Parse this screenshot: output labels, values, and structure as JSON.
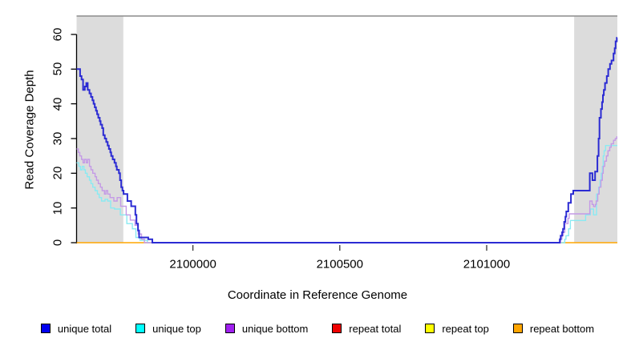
{
  "chart_data": {
    "type": "line",
    "subtype": "step-coverage",
    "title": "",
    "xlabel": "Coordinate in Reference Genome",
    "ylabel": "Read Coverage Depth",
    "xlim": [
      2099604,
      2101445
    ],
    "ylim": [
      0,
      65.3
    ],
    "x_ticks": [
      2100000,
      2100500,
      2101000
    ],
    "x_tick_labels": [
      "2100000",
      "2100500",
      "2101000"
    ],
    "y_ticks": [
      0,
      10,
      20,
      30,
      40,
      50,
      60
    ],
    "y_tick_labels": [
      "0",
      "10",
      "20",
      "30",
      "40",
      "50",
      "60"
    ],
    "grid": false,
    "legend_position": "bottom",
    "colors": {
      "background": "#ffffff",
      "shade": "#dcdcdc",
      "top_frame": "#8c8c8c",
      "axis": "#000000",
      "text": "#000000"
    },
    "shaded_regions": [
      [
        2099604,
        2099763
      ],
      [
        2101298,
        2101445
      ]
    ],
    "series": [
      {
        "name": "unique total",
        "legend_color": "#0000f0",
        "line_color": "#2b2bd3",
        "line_width": 2,
        "points": [
          [
            2099604,
            50
          ],
          [
            2099616,
            48
          ],
          [
            2099621,
            47
          ],
          [
            2099626,
            44
          ],
          [
            2099632,
            45
          ],
          [
            2099637,
            46
          ],
          [
            2099642,
            44
          ],
          [
            2099648,
            43
          ],
          [
            2099653,
            42
          ],
          [
            2099658,
            41
          ],
          [
            2099662,
            40
          ],
          [
            2099666,
            39
          ],
          [
            2099670,
            38
          ],
          [
            2099674,
            37
          ],
          [
            2099678,
            36
          ],
          [
            2099683,
            35
          ],
          [
            2099686,
            34
          ],
          [
            2099691,
            33
          ],
          [
            2099695,
            31
          ],
          [
            2099700,
            30
          ],
          [
            2099705,
            29
          ],
          [
            2099710,
            28
          ],
          [
            2099714,
            27
          ],
          [
            2099719,
            26
          ],
          [
            2099722,
            25
          ],
          [
            2099727,
            24
          ],
          [
            2099733,
            23
          ],
          [
            2099738,
            22
          ],
          [
            2099741,
            21
          ],
          [
            2099748,
            20
          ],
          [
            2099752,
            18
          ],
          [
            2099756,
            16
          ],
          [
            2099760,
            15
          ],
          [
            2099764,
            14
          ],
          [
            2099777,
            12
          ],
          [
            2099790,
            10.5
          ],
          [
            2099804,
            8
          ],
          [
            2099808,
            5.5
          ],
          [
            2099813,
            3.5
          ],
          [
            2099817,
            1.5
          ],
          [
            2099848,
            1
          ],
          [
            2099862,
            0
          ],
          [
            2101249,
            1
          ],
          [
            2101252,
            2
          ],
          [
            2101257,
            3
          ],
          [
            2101260,
            4
          ],
          [
            2101264,
            6
          ],
          [
            2101268,
            7.5
          ],
          [
            2101271,
            9
          ],
          [
            2101278,
            11.5
          ],
          [
            2101287,
            14
          ],
          [
            2101295,
            15
          ],
          [
            2101351,
            20
          ],
          [
            2101360,
            18
          ],
          [
            2101369,
            20.5
          ],
          [
            2101377,
            25
          ],
          [
            2101381,
            30
          ],
          [
            2101384,
            36
          ],
          [
            2101389,
            38.5
          ],
          [
            2101393,
            40.5
          ],
          [
            2101396,
            42.5
          ],
          [
            2101399,
            44
          ],
          [
            2101403,
            46
          ],
          [
            2101409,
            48
          ],
          [
            2101414,
            50
          ],
          [
            2101420,
            51.5
          ],
          [
            2101425,
            52.5
          ],
          [
            2101432,
            54.5
          ],
          [
            2101436,
            56
          ],
          [
            2101439,
            58
          ],
          [
            2101443,
            59
          ]
        ]
      },
      {
        "name": "unique top",
        "legend_color": "#00ffff",
        "line_color": "#8aeaf2",
        "line_width": 1.4,
        "points": [
          [
            2099604,
            23
          ],
          [
            2099612,
            22
          ],
          [
            2099617,
            21
          ],
          [
            2099623,
            22
          ],
          [
            2099629,
            21
          ],
          [
            2099634,
            20
          ],
          [
            2099640,
            19
          ],
          [
            2099648,
            18
          ],
          [
            2099653,
            17
          ],
          [
            2099659,
            16
          ],
          [
            2099667,
            15
          ],
          [
            2099675,
            14
          ],
          [
            2099681,
            13
          ],
          [
            2099689,
            12
          ],
          [
            2099701,
            12.5
          ],
          [
            2099710,
            12
          ],
          [
            2099720,
            10
          ],
          [
            2099733,
            9.7
          ],
          [
            2099753,
            8
          ],
          [
            2099775,
            5.5
          ],
          [
            2099794,
            4
          ],
          [
            2099806,
            1.5
          ],
          [
            2099820,
            0.7
          ],
          [
            2099845,
            0
          ],
          [
            2101266,
            1
          ],
          [
            2101270,
            2
          ],
          [
            2101279,
            4
          ],
          [
            2101285,
            6.4
          ],
          [
            2101337,
            8
          ],
          [
            2101353,
            9.7
          ],
          [
            2101364,
            8
          ],
          [
            2101374,
            14
          ],
          [
            2101381,
            16
          ],
          [
            2101386,
            18
          ],
          [
            2101390,
            20
          ],
          [
            2101394,
            22
          ],
          [
            2101397,
            25
          ],
          [
            2101400,
            26.5
          ],
          [
            2101405,
            28
          ]
        ]
      },
      {
        "name": "unique bottom",
        "legend_color": "#a020f0",
        "line_color": "#c49ae6",
        "line_width": 1.4,
        "points": [
          [
            2099604,
            27
          ],
          [
            2099610,
            26
          ],
          [
            2099615,
            25
          ],
          [
            2099621,
            24
          ],
          [
            2099626,
            23
          ],
          [
            2099631,
            24
          ],
          [
            2099637,
            23
          ],
          [
            2099642,
            24
          ],
          [
            2099648,
            22
          ],
          [
            2099653,
            21
          ],
          [
            2099659,
            20
          ],
          [
            2099667,
            19
          ],
          [
            2099672,
            18
          ],
          [
            2099678,
            17
          ],
          [
            2099685,
            16
          ],
          [
            2099691,
            15
          ],
          [
            2099699,
            14
          ],
          [
            2099704,
            15
          ],
          [
            2099710,
            14
          ],
          [
            2099718,
            13
          ],
          [
            2099731,
            12
          ],
          [
            2099742,
            13
          ],
          [
            2099754,
            10.5
          ],
          [
            2099773,
            8
          ],
          [
            2099787,
            6.5
          ],
          [
            2099803,
            5
          ],
          [
            2099814,
            2.5
          ],
          [
            2099825,
            1
          ],
          [
            2099835,
            0
          ],
          [
            2101252,
            1
          ],
          [
            2101256,
            2
          ],
          [
            2101261,
            3
          ],
          [
            2101266,
            5.5
          ],
          [
            2101277,
            7
          ],
          [
            2101281,
            8.3
          ],
          [
            2101351,
            12
          ],
          [
            2101359,
            11
          ],
          [
            2101364,
            10.4
          ],
          [
            2101370,
            11
          ],
          [
            2101373,
            12
          ],
          [
            2101378,
            14
          ],
          [
            2101383,
            16
          ],
          [
            2101389,
            18
          ],
          [
            2101394,
            20
          ],
          [
            2101397,
            22
          ],
          [
            2101402,
            23.5
          ],
          [
            2101408,
            25
          ],
          [
            2101413,
            26.5
          ],
          [
            2101419,
            27.5
          ],
          [
            2101424,
            28.5
          ],
          [
            2101432,
            29.5
          ],
          [
            2101438,
            30
          ],
          [
            2101443,
            30.5
          ]
        ]
      },
      {
        "name": "repeat total",
        "legend_color": "#ee0000",
        "line_color": "#ee0000",
        "line_width": 1,
        "points": [
          [
            2099604,
            0
          ]
        ]
      },
      {
        "name": "repeat top",
        "legend_color": "#ffff00",
        "line_color": "#ffff00",
        "line_width": 1,
        "points": [
          [
            2099604,
            0
          ]
        ]
      },
      {
        "name": "repeat bottom",
        "legend_color": "#ffa500",
        "line_color": "#ffa500",
        "line_width": 1.6,
        "points": [
          [
            2099604,
            0
          ]
        ]
      }
    ]
  }
}
